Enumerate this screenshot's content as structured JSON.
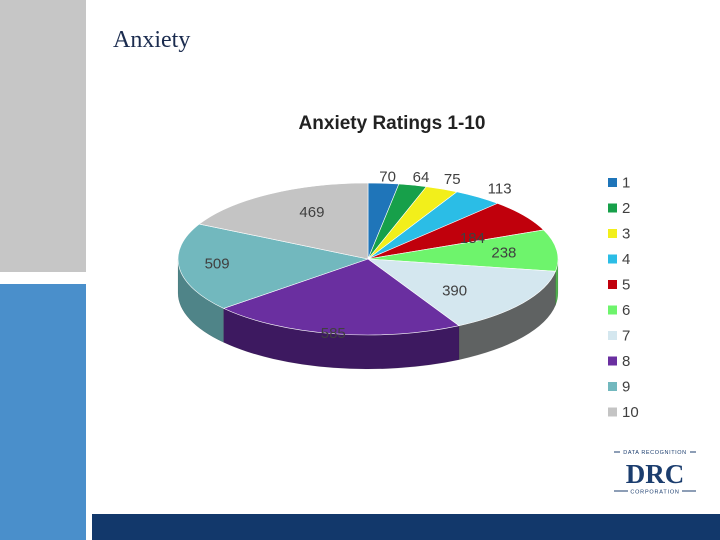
{
  "slide": {
    "title": "Anxiety"
  },
  "chart_data": {
    "type": "pie",
    "title": "Anxiety Ratings 1-10",
    "categories": [
      "1",
      "2",
      "3",
      "4",
      "5",
      "6",
      "7",
      "8",
      "9",
      "10"
    ],
    "values": [
      70,
      64,
      75,
      113,
      184,
      238,
      390,
      585,
      509,
      469
    ],
    "colors": [
      "#1f75b9",
      "#17a04a",
      "#f2ef1b",
      "#2bbde6",
      "#c0000c",
      "#6ef46c",
      "#d4e7ef",
      "#6a2fa0",
      "#72b8be",
      "#c4c4c4"
    ],
    "side_colors": [
      "#165687",
      "#107535",
      "#b0ae12",
      "#1f8ba8",
      "#8a0009",
      "#50b04e",
      "#5f6262",
      "#3d1960",
      "#4f8488",
      "#8c8c8c"
    ],
    "legend_position": "right",
    "three_d": true
  },
  "logo": {
    "name": "drc-logo-icon",
    "top_text": "DATA RECOGNITION",
    "main_text": "DRC",
    "bottom_text": "CORPORATION"
  }
}
